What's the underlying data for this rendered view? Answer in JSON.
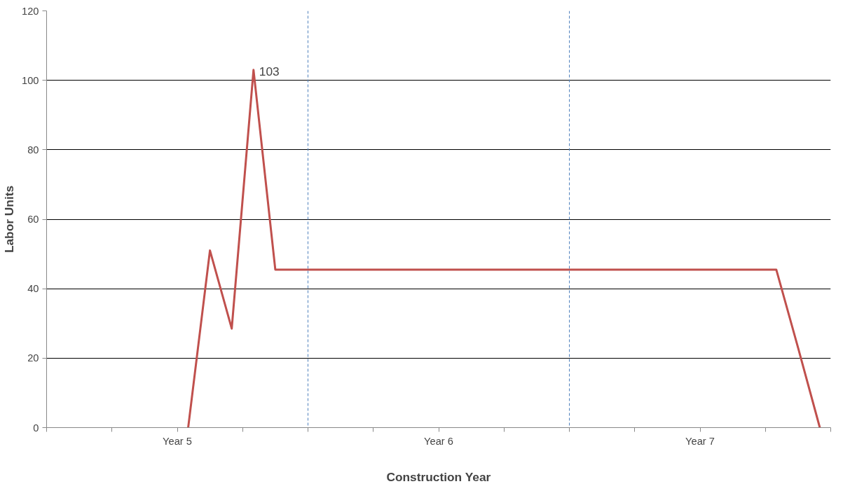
{
  "chart_data": {
    "type": "line",
    "xlabel": "Construction Year",
    "ylabel": "Labor Units",
    "categories": [
      null,
      null,
      null,
      null,
      null,
      null,
      null,
      null,
      null,
      null,
      null,
      null,
      null,
      null,
      null,
      null,
      null,
      null,
      null,
      null,
      null,
      null,
      null,
      null,
      null,
      null,
      null,
      null,
      null,
      null,
      null,
      null,
      null,
      null,
      null,
      null
    ],
    "series": [
      {
        "color": "#c0504d",
        "values": [
          null,
          null,
          null,
          null,
          null,
          null,
          0,
          51,
          28.5,
          103,
          45.5,
          45.5,
          45.5,
          45.5,
          45.5,
          45.5,
          45.5,
          45.5,
          45.5,
          45.5,
          45.5,
          45.5,
          45.5,
          45.5,
          45.5,
          45.5,
          45.5,
          45.5,
          45.5,
          45.5,
          45.5,
          45.5,
          45.5,
          45.5,
          23,
          0
        ]
      }
    ],
    "ylim": [
      0,
      120
    ],
    "yticks": [
      0,
      20,
      40,
      60,
      80,
      100,
      120
    ],
    "grid": "y",
    "marker": "none",
    "line_style": "solid",
    "annotations": [
      "Year 5",
      "Year 6",
      "Year 7",
      "103"
    ]
  }
}
